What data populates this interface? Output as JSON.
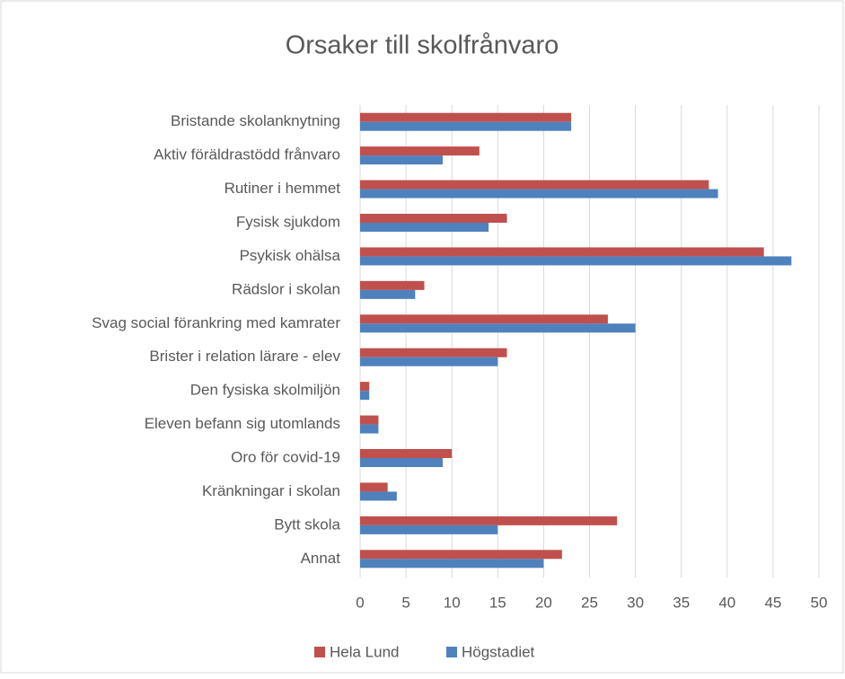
{
  "chart_data": {
    "type": "hbar",
    "title": "Orsaker till skolfrånvaro",
    "categories": [
      "Bristande skolanknytning",
      "Aktiv föräldrastödd frånvaro",
      "Rutiner i hemmet",
      "Fysisk sjukdom",
      "Psykisk ohälsa",
      "Rädslor i skolan",
      "Svag social förankring med kamrater",
      "Brister i relation lärare - elev",
      "Den fysiska skolmiljön",
      "Eleven befann sig utomlands",
      "Oro för covid-19",
      "Kränkningar i skolan",
      "Bytt skola",
      "Annat"
    ],
    "series": [
      {
        "name": "Hela Lund",
        "color": "#c0504d",
        "values": [
          23,
          13,
          38,
          16,
          44,
          7,
          27,
          16,
          1,
          2,
          10,
          3,
          28,
          22
        ]
      },
      {
        "name": "Högstadiet",
        "color": "#4f81bd",
        "values": [
          23,
          9,
          39,
          14,
          47,
          6,
          30,
          15,
          1,
          2,
          9,
          4,
          15,
          20
        ]
      }
    ],
    "xlim": [
      0,
      50
    ],
    "xticks": [
      0,
      5,
      10,
      15,
      20,
      25,
      30,
      35,
      40,
      45,
      50
    ],
    "grid": true,
    "legend": "bottom"
  }
}
